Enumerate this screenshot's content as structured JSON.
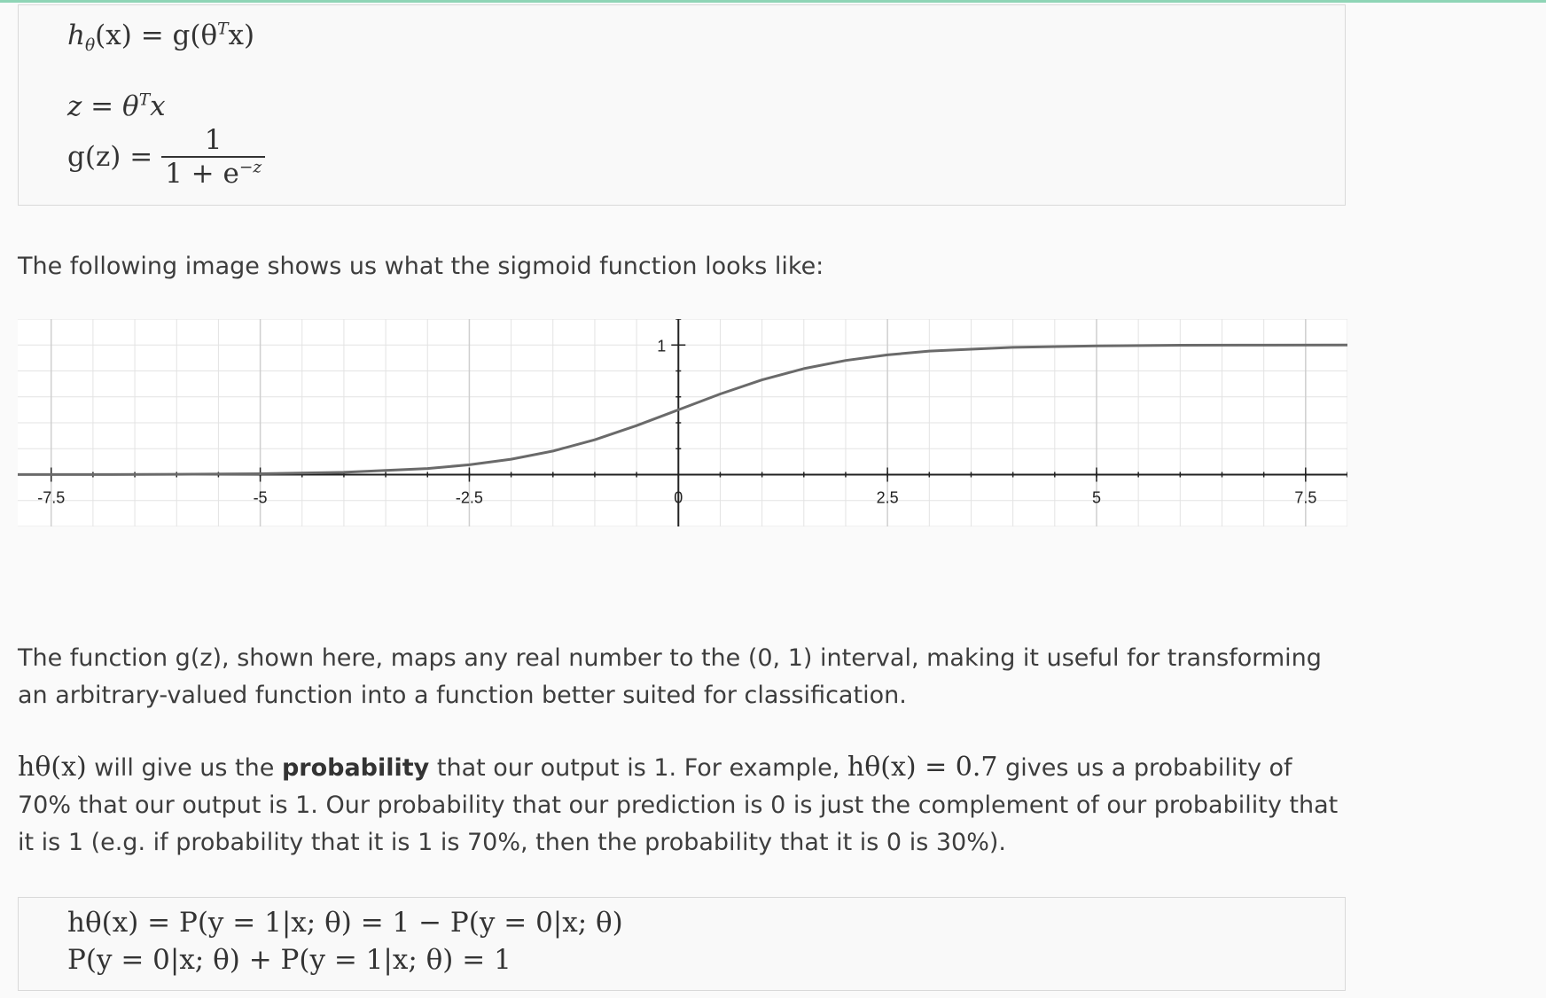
{
  "equations": {
    "hypothesis": "hθ(x) = g(θᵀx)",
    "hyp_lhs": "h",
    "hyp_sub": "θ",
    "hyp_rest": "(x) = g(θ",
    "hyp_sup": "T",
    "hyp_end": "x)",
    "z_lhs": "z = θ",
    "z_sup": "T",
    "z_end": "x",
    "g_lhs": "g(z) =",
    "g_num": "1",
    "g_den": "1 + e",
    "g_den_sup": "−z"
  },
  "text": {
    "intro": "The following image shows us what the sigmoid function looks like:",
    "para1": "The function g(z), shown here, maps any real number to the (0, 1) interval, making it useful for transforming an arbitrary-valued function into a function better suited for classification.",
    "para2_m1": "hθ(x)",
    "para2_a": " will give us the ",
    "para2_bold": "probability",
    "para2_b": " that our output is 1. For example, ",
    "para2_m2": "hθ(x) = 0.7",
    "para2_c": " gives us a probability of 70% that our output is 1. Our probability that our prediction is 0 is just the complement of our probability that it is 1 (e.g. if probability that it is 1 is 70%, then the probability that it is 0 is 30%)."
  },
  "bottom_equations": {
    "line1": "hθ(x) = P(y = 1|x; θ) = 1 − P(y = 0|x; θ)",
    "line2": "P(y = 0|x; θ) + P(y = 1|x; θ) = 1"
  },
  "chart_data": {
    "type": "line",
    "function": "sigmoid",
    "x_ticks": [
      "-7.5",
      "-5",
      "-2.5",
      "0",
      "2.5",
      "5",
      "7.5"
    ],
    "y_ticks": [
      "1"
    ],
    "xlim": [
      -7.9,
      8
    ],
    "ylim": [
      -0.4,
      1.2
    ],
    "grid": true,
    "series": [
      {
        "x": [
          -7.9,
          -7,
          -6,
          -5,
          -4,
          -3,
          -2.5,
          -2,
          -1.5,
          -1,
          -0.5,
          0,
          0.5,
          1,
          1.5,
          2,
          2.5,
          3,
          4,
          5,
          6,
          7,
          8
        ],
        "y": [
          0.0004,
          0.0009,
          0.0025,
          0.0067,
          0.018,
          0.047,
          0.076,
          0.119,
          0.182,
          0.269,
          0.378,
          0.5,
          0.622,
          0.731,
          0.818,
          0.881,
          0.924,
          0.953,
          0.982,
          0.993,
          0.998,
          0.999,
          1.0
        ]
      }
    ],
    "colors": {
      "curve": "#6a6a6a",
      "axis": "#222222",
      "grid": "#e3e3e3",
      "background": "#ffffff"
    }
  }
}
